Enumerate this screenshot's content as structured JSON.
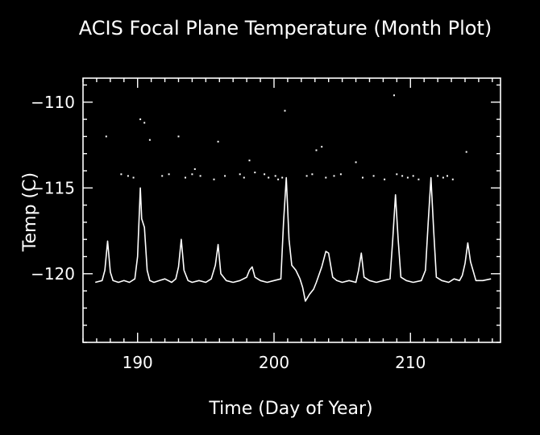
{
  "chart_data": {
    "type": "line",
    "title": "ACIS Focal Plane Temperature (Month Plot)",
    "xlabel": "Time (Day of Year)",
    "ylabel": "Temp (C)",
    "xlim": [
      186.0,
      216.6
    ],
    "ylim": [
      -124.0,
      -108.6
    ],
    "xticks": [
      190,
      200,
      210
    ],
    "yticks": [
      -110,
      -115,
      -120
    ],
    "xtick_labels": [
      "190",
      "200",
      "210"
    ],
    "ytick_labels": [
      "−110",
      "−115",
      "−120"
    ],
    "grid": false,
    "legend": "none",
    "series": [
      {
        "x": [
          186.9,
          187.4,
          187.6,
          187.8,
          188.0,
          188.2,
          188.6,
          189.0,
          189.4,
          189.8,
          190.0,
          190.2,
          190.3,
          190.5,
          190.7,
          190.9,
          191.2,
          191.6,
          192.0,
          192.5,
          192.8,
          193.0,
          193.2,
          193.4,
          193.7,
          194.0,
          194.5,
          195.0,
          195.4,
          195.7,
          195.9,
          196.1,
          196.5,
          197.0,
          197.5,
          198.0,
          198.2,
          198.4,
          198.6,
          199.0,
          199.5,
          200.0,
          200.5,
          200.7,
          200.9,
          201.1,
          201.3,
          201.6,
          201.9,
          202.1,
          202.3,
          202.6,
          202.9,
          203.1,
          203.5,
          203.8,
          204.0,
          204.3,
          204.6,
          205.0,
          205.5,
          206.0,
          206.2,
          206.4,
          206.6,
          207.0,
          207.5,
          208.0,
          208.5,
          208.7,
          208.9,
          209.1,
          209.3,
          209.7,
          210.2,
          210.8,
          211.1,
          211.3,
          211.5,
          211.7,
          211.9,
          212.3,
          212.8,
          213.2,
          213.6,
          213.8,
          214.0,
          214.2,
          214.4,
          214.8,
          215.3,
          215.9
        ],
        "y": [
          -120.5,
          -120.4,
          -119.8,
          -118.1,
          -119.9,
          -120.4,
          -120.5,
          -120.4,
          -120.5,
          -120.3,
          -119.0,
          -115.0,
          -116.8,
          -117.3,
          -119.8,
          -120.4,
          -120.5,
          -120.4,
          -120.3,
          -120.5,
          -120.3,
          -119.6,
          -118.0,
          -119.8,
          -120.4,
          -120.5,
          -120.4,
          -120.5,
          -120.3,
          -119.5,
          -118.3,
          -120.0,
          -120.4,
          -120.5,
          -120.4,
          -120.2,
          -119.8,
          -119.6,
          -120.2,
          -120.4,
          -120.5,
          -120.4,
          -120.3,
          -117.0,
          -114.4,
          -118.0,
          -119.5,
          -119.8,
          -120.3,
          -120.8,
          -121.6,
          -121.2,
          -120.9,
          -120.5,
          -119.6,
          -118.7,
          -118.8,
          -120.2,
          -120.4,
          -120.5,
          -120.4,
          -120.5,
          -119.8,
          -118.8,
          -120.2,
          -120.4,
          -120.5,
          -120.4,
          -120.3,
          -118.0,
          -115.4,
          -118.0,
          -120.2,
          -120.4,
          -120.5,
          -120.4,
          -119.8,
          -117.0,
          -114.4,
          -117.5,
          -120.2,
          -120.4,
          -120.5,
          -120.3,
          -120.4,
          -120.1,
          -119.4,
          -118.2,
          -119.3,
          -120.4,
          -120.4,
          -120.3
        ]
      },
      {
        "x": [
          187.7,
          188.8,
          189.3,
          189.7,
          190.2,
          190.5,
          190.9,
          191.8,
          192.3,
          193.0,
          193.5,
          194.0,
          194.2,
          194.6,
          195.6,
          195.9,
          196.4,
          197.5,
          197.8,
          198.2,
          198.6,
          199.3,
          199.6,
          200.1,
          200.3,
          200.6,
          200.8,
          202.4,
          202.8,
          203.1,
          203.5,
          203.8,
          204.4,
          204.9,
          206.0,
          206.5,
          207.3,
          208.1,
          208.8,
          209.0,
          209.4,
          209.8,
          210.2,
          210.6,
          212.0,
          212.4,
          212.7,
          213.1,
          214.1
        ],
        "y": [
          -112.0,
          -114.2,
          -114.3,
          -114.4,
          -111.0,
          -111.2,
          -112.2,
          -114.3,
          -114.2,
          -112.0,
          -114.4,
          -114.2,
          -113.9,
          -114.3,
          -114.5,
          -112.3,
          -114.3,
          -114.2,
          -114.4,
          -113.4,
          -114.1,
          -114.2,
          -114.4,
          -114.3,
          -114.5,
          -114.4,
          -110.5,
          -114.3,
          -114.2,
          -112.8,
          -112.6,
          -114.4,
          -114.3,
          -114.2,
          -113.5,
          -114.4,
          -114.3,
          -114.5,
          -109.6,
          -114.2,
          -114.3,
          -114.4,
          -114.3,
          -114.5,
          -114.3,
          -114.4,
          -114.3,
          -114.5,
          -112.9
        ]
      }
    ]
  }
}
